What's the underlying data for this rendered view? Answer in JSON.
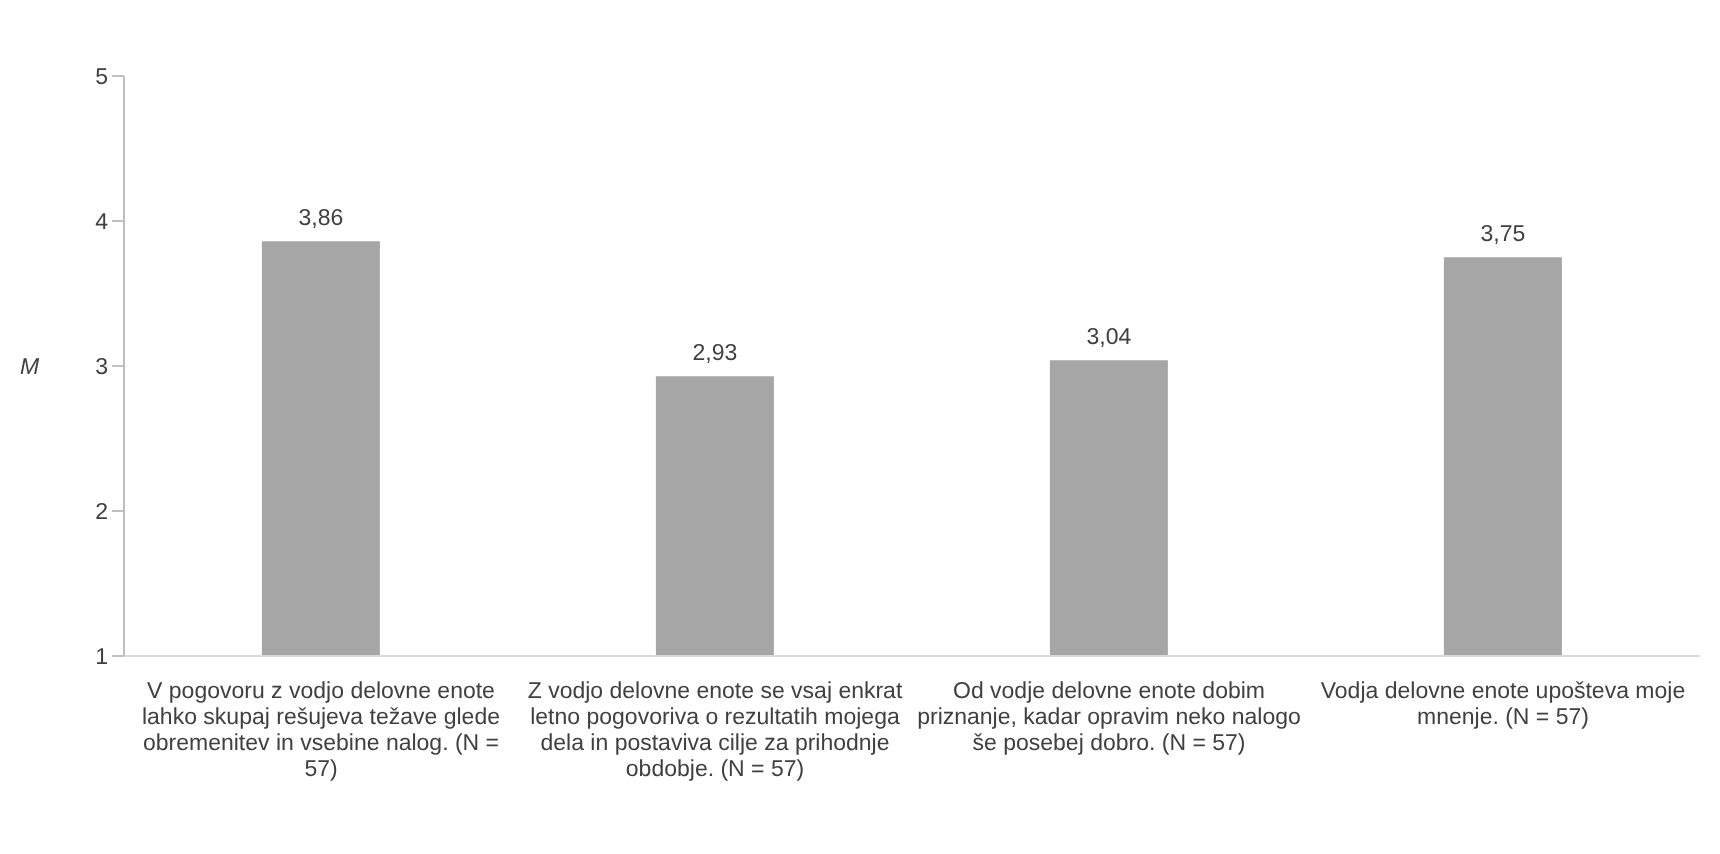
{
  "chart_data": {
    "type": "bar",
    "ylabel": "M",
    "categories": [
      "V pogovoru z vodjo delovne enote lahko skupaj rešujeva težave glede obremenitev in vsebine nalog. (N = 57)",
      "Z vodjo delovne enote se vsaj enkrat letno pogovoriva o rezultatih mojega dela in postaviva cilje za prihodnje obdobje. (N = 57)",
      "Od vodje delovne enote dobim priznanje, kadar opravim neko nalogo še posebej dobro. (N = 57)",
      "Vodja delovne enote upošteva moje mnenje. (N = 57)"
    ],
    "values": [
      3.86,
      2.93,
      3.04,
      3.75
    ],
    "value_labels": [
      "3,86",
      "2,93",
      "3,04",
      "3,75"
    ],
    "color": "#a6a6a6",
    "ylim": [
      1,
      5
    ],
    "yticks": [
      1,
      2,
      3,
      4,
      5
    ],
    "grid": false,
    "legend": false
  }
}
